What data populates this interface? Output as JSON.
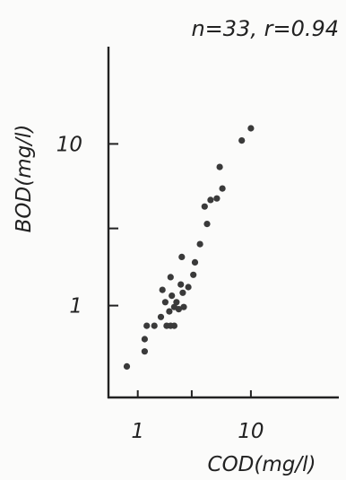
{
  "chart_data": {
    "type": "scatter",
    "annotation": "n=33, r=0.94",
    "xlabel": "COD(mg/l)",
    "ylabel": "BOD(mg/l)",
    "x_scale": "log",
    "y_scale": "log",
    "xlim": [
      0.55,
      60
    ],
    "ylim": [
      0.27,
      40
    ],
    "grid": false,
    "colors": {
      "ink": "#222222",
      "point": "#3a3a3a",
      "background": "#fbfbfa"
    },
    "x_ticks": [
      {
        "value": 1,
        "label": "1"
      },
      {
        "value": 3,
        "label": ""
      },
      {
        "value": 10,
        "label": "10"
      }
    ],
    "y_ticks": [
      {
        "value": 1,
        "label": "1"
      },
      {
        "value": 3,
        "label": ""
      },
      {
        "value": 10,
        "label": "10"
      }
    ],
    "points": [
      {
        "x": 0.8,
        "y": 0.42
      },
      {
        "x": 1.15,
        "y": 0.52
      },
      {
        "x": 1.15,
        "y": 0.62
      },
      {
        "x": 1.2,
        "y": 0.75
      },
      {
        "x": 1.4,
        "y": 0.75
      },
      {
        "x": 1.6,
        "y": 0.85
      },
      {
        "x": 1.65,
        "y": 1.25
      },
      {
        "x": 1.75,
        "y": 1.05
      },
      {
        "x": 1.8,
        "y": 0.75
      },
      {
        "x": 1.9,
        "y": 0.92
      },
      {
        "x": 1.95,
        "y": 1.5
      },
      {
        "x": 1.95,
        "y": 0.75
      },
      {
        "x": 2.0,
        "y": 1.15
      },
      {
        "x": 2.1,
        "y": 0.98
      },
      {
        "x": 2.1,
        "y": 0.75
      },
      {
        "x": 2.2,
        "y": 1.05
      },
      {
        "x": 2.3,
        "y": 0.95
      },
      {
        "x": 2.4,
        "y": 1.35
      },
      {
        "x": 2.45,
        "y": 2.0
      },
      {
        "x": 2.5,
        "y": 1.2
      },
      {
        "x": 2.55,
        "y": 0.98
      },
      {
        "x": 2.8,
        "y": 1.3
      },
      {
        "x": 3.1,
        "y": 1.55
      },
      {
        "x": 3.2,
        "y": 1.85
      },
      {
        "x": 3.55,
        "y": 2.4
      },
      {
        "x": 3.9,
        "y": 4.1
      },
      {
        "x": 4.1,
        "y": 3.2
      },
      {
        "x": 4.4,
        "y": 4.5
      },
      {
        "x": 5.0,
        "y": 4.6
      },
      {
        "x": 5.3,
        "y": 7.2
      },
      {
        "x": 5.6,
        "y": 5.3
      },
      {
        "x": 8.3,
        "y": 10.5
      },
      {
        "x": 10.0,
        "y": 12.5
      }
    ]
  }
}
